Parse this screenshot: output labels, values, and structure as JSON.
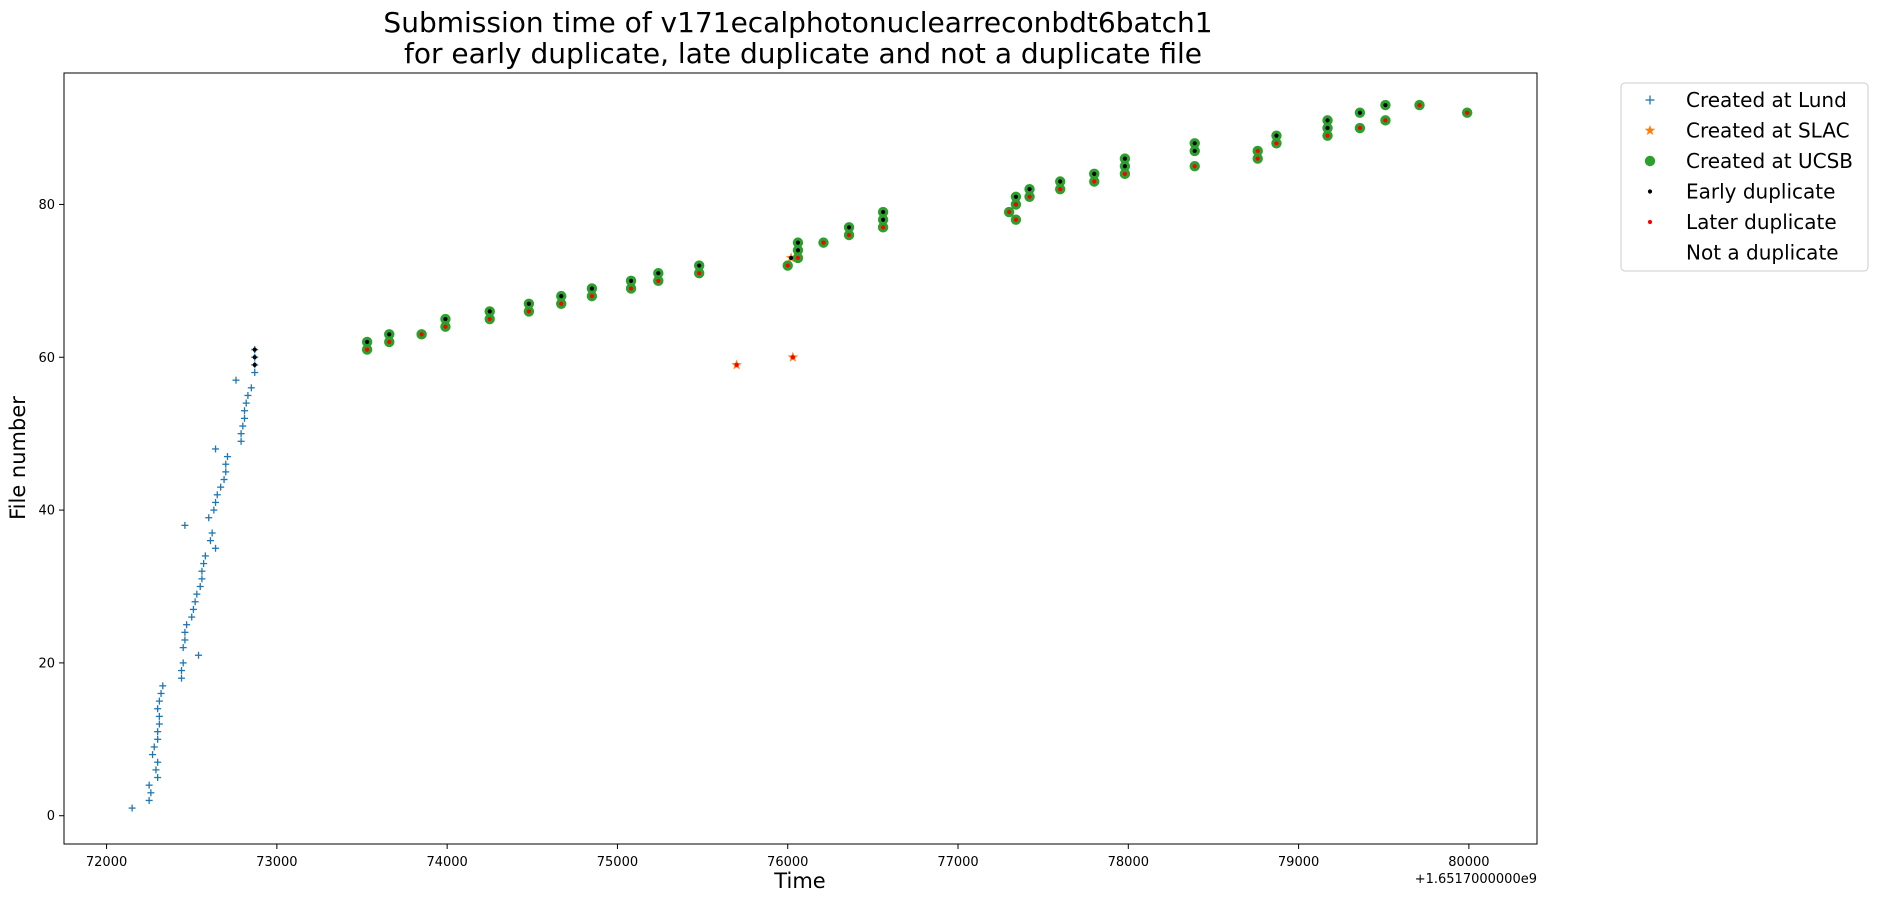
{
  "chart_data": {
    "type": "scatter",
    "title_line1": "Submission time of v171ecalphotonuclearreconbdt6batch1",
    "title_line2": "for early duplicate, late duplicate and not a duplicate file",
    "xlabel": "Time",
    "ylabel": "File number",
    "x_offset_label": "+1.6517000000e9",
    "xlim": [
      71750,
      80400
    ],
    "ylim": [
      -3.7,
      97.2
    ],
    "xticks": [
      "72000",
      "73000",
      "74000",
      "75000",
      "76000",
      "77000",
      "78000",
      "79000",
      "80000"
    ],
    "yticks": [
      "0",
      "20",
      "40",
      "60",
      "80"
    ],
    "grid": false,
    "legend_position": "outside-upper-right",
    "legend": [
      {
        "label": "Created at Lund",
        "marker": "plus",
        "color": "#1f77b4"
      },
      {
        "label": "Created at SLAC",
        "marker": "star",
        "color": "#ff7f0e"
      },
      {
        "label": "Created at UCSB",
        "marker": "circle",
        "color": "#2ca02c"
      },
      {
        "label": "Early duplicate",
        "marker": "dot",
        "color": "#000000"
      },
      {
        "label": "Later duplicate",
        "marker": "dot",
        "color": "#ff0000"
      },
      {
        "label": "Not a duplicate",
        "marker": "none",
        "color": "#ffffff"
      }
    ],
    "series": [
      {
        "name": "Created at Lund",
        "points": [
          [
            72150,
            1
          ],
          [
            72250,
            2
          ],
          [
            72260,
            3
          ],
          [
            72250,
            4
          ],
          [
            72300,
            5
          ],
          [
            72290,
            6
          ],
          [
            72300,
            7
          ],
          [
            72270,
            8
          ],
          [
            72280,
            9
          ],
          [
            72300,
            10
          ],
          [
            72300,
            11
          ],
          [
            72310,
            12
          ],
          [
            72310,
            13
          ],
          [
            72300,
            14
          ],
          [
            72310,
            15
          ],
          [
            72320,
            16
          ],
          [
            72330,
            17
          ],
          [
            72440,
            18
          ],
          [
            72440,
            19
          ],
          [
            72450,
            20
          ],
          [
            72540,
            21
          ],
          [
            72450,
            22
          ],
          [
            72460,
            23
          ],
          [
            72460,
            24
          ],
          [
            72470,
            25
          ],
          [
            72500,
            26
          ],
          [
            72510,
            27
          ],
          [
            72520,
            28
          ],
          [
            72530,
            29
          ],
          [
            72550,
            30
          ],
          [
            72560,
            31
          ],
          [
            72560,
            32
          ],
          [
            72570,
            33
          ],
          [
            72580,
            34
          ],
          [
            72640,
            35
          ],
          [
            72610,
            36
          ],
          [
            72620,
            37
          ],
          [
            72460,
            38
          ],
          [
            72600,
            39
          ],
          [
            72630,
            40
          ],
          [
            72640,
            41
          ],
          [
            72650,
            42
          ],
          [
            72670,
            43
          ],
          [
            72690,
            44
          ],
          [
            72700,
            45
          ],
          [
            72700,
            46
          ],
          [
            72710,
            47
          ],
          [
            72640,
            48
          ],
          [
            72790,
            49
          ],
          [
            72790,
            50
          ],
          [
            72800,
            51
          ],
          [
            72810,
            52
          ],
          [
            72810,
            53
          ],
          [
            72820,
            54
          ],
          [
            72830,
            55
          ],
          [
            72850,
            56
          ],
          [
            72760,
            57
          ],
          [
            72870,
            58
          ],
          [
            72870,
            59
          ],
          [
            72870,
            60
          ],
          [
            72870,
            61
          ]
        ]
      },
      {
        "name": "Created at SLAC",
        "points": [
          [
            75700,
            59
          ],
          [
            76030,
            60
          ],
          [
            76020,
            73
          ]
        ]
      },
      {
        "name": "Created at UCSB",
        "points": [
          [
            73530,
            61
          ],
          [
            73530,
            62
          ],
          [
            73660,
            62
          ],
          [
            73660,
            63
          ],
          [
            73850,
            63
          ],
          [
            73990,
            64
          ],
          [
            73990,
            65
          ],
          [
            74250,
            65
          ],
          [
            74250,
            66
          ],
          [
            74480,
            66
          ],
          [
            74480,
            67
          ],
          [
            74670,
            67
          ],
          [
            74670,
            68
          ],
          [
            74850,
            68
          ],
          [
            74850,
            69
          ],
          [
            75080,
            69
          ],
          [
            75080,
            70
          ],
          [
            75240,
            70
          ],
          [
            75240,
            71
          ],
          [
            75480,
            71
          ],
          [
            75480,
            72
          ],
          [
            76000,
            72
          ],
          [
            76060,
            73
          ],
          [
            76060,
            74
          ],
          [
            76060,
            75
          ],
          [
            76210,
            75
          ],
          [
            76360,
            76
          ],
          [
            76360,
            77
          ],
          [
            76560,
            77
          ],
          [
            76560,
            78
          ],
          [
            76560,
            79
          ],
          [
            77300,
            79
          ],
          [
            77340,
            78
          ],
          [
            77340,
            80
          ],
          [
            77340,
            81
          ],
          [
            77420,
            81
          ],
          [
            77420,
            82
          ],
          [
            77600,
            82
          ],
          [
            77600,
            83
          ],
          [
            77800,
            83
          ],
          [
            77800,
            84
          ],
          [
            77980,
            84
          ],
          [
            77980,
            85
          ],
          [
            77980,
            86
          ],
          [
            78390,
            85
          ],
          [
            78390,
            87
          ],
          [
            78390,
            88
          ],
          [
            78760,
            86
          ],
          [
            78760,
            87
          ],
          [
            78870,
            88
          ],
          [
            78870,
            89
          ],
          [
            79170,
            89
          ],
          [
            79170,
            90
          ],
          [
            79170,
            91
          ],
          [
            79360,
            90
          ],
          [
            79360,
            92
          ],
          [
            79510,
            91
          ],
          [
            79510,
            93
          ],
          [
            79710,
            93
          ],
          [
            79990,
            92
          ]
        ]
      },
      {
        "name": "Early duplicate",
        "points": [
          [
            72870,
            59
          ],
          [
            72870,
            60
          ],
          [
            72870,
            61
          ],
          [
            73530,
            62
          ],
          [
            73660,
            63
          ],
          [
            73990,
            65
          ],
          [
            74250,
            66
          ],
          [
            74480,
            67
          ],
          [
            74670,
            68
          ],
          [
            74850,
            69
          ],
          [
            75080,
            70
          ],
          [
            75240,
            71
          ],
          [
            75480,
            72
          ],
          [
            76020,
            73
          ],
          [
            76060,
            74
          ],
          [
            76060,
            75
          ],
          [
            76360,
            77
          ],
          [
            76560,
            78
          ],
          [
            76560,
            79
          ],
          [
            77340,
            80
          ],
          [
            77340,
            81
          ],
          [
            77420,
            82
          ],
          [
            77600,
            83
          ],
          [
            77800,
            84
          ],
          [
            77980,
            85
          ],
          [
            77980,
            86
          ],
          [
            78390,
            87
          ],
          [
            78390,
            88
          ],
          [
            78870,
            89
          ],
          [
            79170,
            90
          ],
          [
            79170,
            91
          ],
          [
            79360,
            92
          ],
          [
            79510,
            93
          ]
        ]
      },
      {
        "name": "Later duplicate",
        "points": [
          [
            75700,
            59
          ],
          [
            76030,
            60
          ],
          [
            73530,
            61
          ],
          [
            73660,
            62
          ],
          [
            73850,
            63
          ],
          [
            73990,
            64
          ],
          [
            74250,
            65
          ],
          [
            74480,
            66
          ],
          [
            74670,
            67
          ],
          [
            74850,
            68
          ],
          [
            75080,
            69
          ],
          [
            75240,
            70
          ],
          [
            75480,
            71
          ],
          [
            76000,
            72
          ],
          [
            76060,
            73
          ],
          [
            76210,
            75
          ],
          [
            76360,
            76
          ],
          [
            76560,
            77
          ],
          [
            77340,
            78
          ],
          [
            77300,
            79
          ],
          [
            77340,
            80
          ],
          [
            77420,
            81
          ],
          [
            77600,
            82
          ],
          [
            77800,
            83
          ],
          [
            77980,
            84
          ],
          [
            78390,
            85
          ],
          [
            78760,
            86
          ],
          [
            78760,
            87
          ],
          [
            78870,
            88
          ],
          [
            79170,
            89
          ],
          [
            79360,
            90
          ],
          [
            79510,
            91
          ],
          [
            79990,
            92
          ],
          [
            79710,
            93
          ]
        ]
      }
    ]
  }
}
